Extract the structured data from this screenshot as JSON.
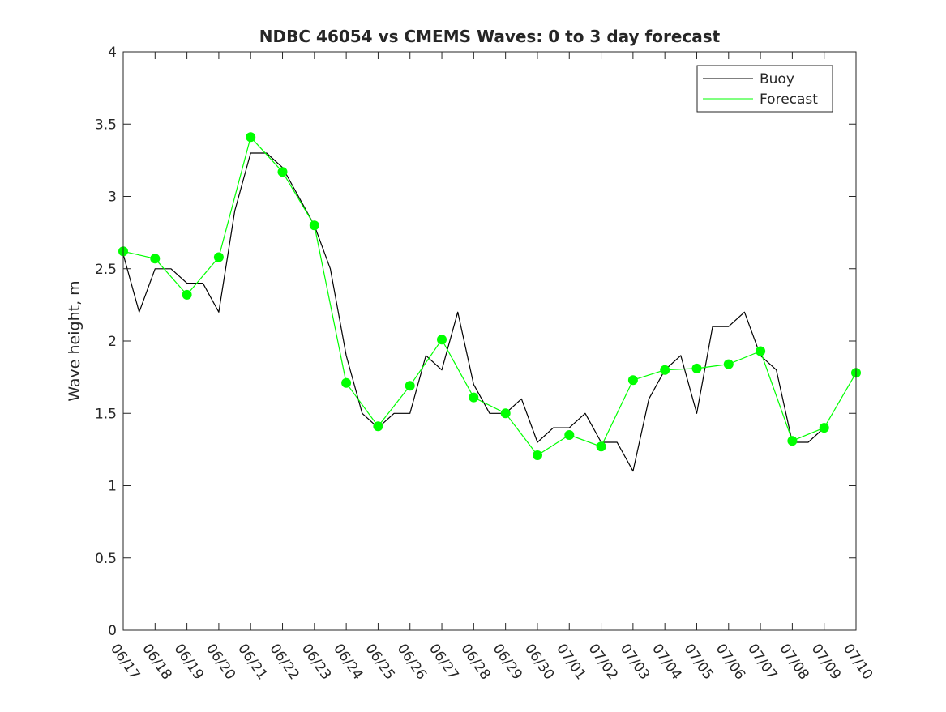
{
  "chart_data": {
    "type": "line",
    "title": "NDBC 46054 vs CMEMS Waves: 0 to 3 day forecast",
    "xlabel": "",
    "ylabel": "Wave height, m",
    "ylim": [
      0,
      4
    ],
    "x_range": [
      "06/17",
      "07/10"
    ],
    "x_ticks": [
      "06/17",
      "06/18",
      "06/19",
      "06/20",
      "06/21",
      "06/22",
      "06/23",
      "06/24",
      "06/25",
      "06/26",
      "06/27",
      "06/28",
      "06/29",
      "06/30",
      "07/01",
      "07/02",
      "07/03",
      "07/04",
      "07/05",
      "07/06",
      "07/07",
      "07/08",
      "07/09",
      "07/10"
    ],
    "y_ticks": [
      "0",
      "0.5",
      "1",
      "1.5",
      "2",
      "2.5",
      "3",
      "3.5",
      "4"
    ],
    "grid": false,
    "legend_position": "top-right",
    "legend": [
      {
        "label": "Buoy",
        "color": "#000000"
      },
      {
        "label": "Forecast",
        "color": "#00ff00"
      }
    ],
    "series": [
      {
        "name": "Buoy",
        "color": "#000000",
        "x": [
          "06/17",
          "06/17 12:00",
          "06/18",
          "06/18 12:00",
          "06/19",
          "06/19 12:00",
          "06/20",
          "06/20 12:00",
          "06/21",
          "06/21 12:00",
          "06/22",
          "06/22 12:00",
          "06/23",
          "06/23 12:00",
          "06/24",
          "06/24 12:00",
          "06/25",
          "06/25 12:00",
          "06/26",
          "06/26 12:00",
          "06/27",
          "06/27 12:00",
          "06/28",
          "06/28 12:00",
          "06/29",
          "06/29 12:00",
          "06/30",
          "06/30 12:00",
          "07/01",
          "07/01 12:00",
          "07/02",
          "07/02 12:00",
          "07/03",
          "07/03 12:00",
          "07/04",
          "07/04 12:00",
          "07/05",
          "07/05 12:00",
          "07/06",
          "07/06 12:00",
          "07/07",
          "07/07 12:00",
          "07/08",
          "07/08 12:00",
          "07/09"
        ],
        "values": [
          2.6,
          2.2,
          2.5,
          2.5,
          2.4,
          2.4,
          2.2,
          2.9,
          3.3,
          3.3,
          3.2,
          3.0,
          2.8,
          2.5,
          1.9,
          1.5,
          1.4,
          1.5,
          1.5,
          1.9,
          1.8,
          2.2,
          1.7,
          1.5,
          1.5,
          1.6,
          1.3,
          1.4,
          1.4,
          1.5,
          1.3,
          1.3,
          1.1,
          1.6,
          1.8,
          1.9,
          1.5,
          2.1,
          2.1,
          2.2,
          1.9,
          1.8,
          1.3,
          1.3,
          1.4
        ]
      },
      {
        "name": "Forecast",
        "color": "#00ff00",
        "x": [
          "06/17",
          "06/18",
          "06/19",
          "06/20",
          "06/21",
          "06/22",
          "06/23",
          "06/24",
          "06/25",
          "06/26",
          "06/27",
          "06/28",
          "06/29",
          "06/30",
          "07/01",
          "07/02",
          "07/03",
          "07/04",
          "07/05",
          "07/06",
          "07/07",
          "07/08",
          "07/09",
          "07/10"
        ],
        "values": [
          2.62,
          2.57,
          2.32,
          2.58,
          3.41,
          3.17,
          2.8,
          1.71,
          1.41,
          1.69,
          2.01,
          1.61,
          1.5,
          1.21,
          1.35,
          1.27,
          1.73,
          1.8,
          1.81,
          1.84,
          1.93,
          1.31,
          1.4,
          1.78
        ],
        "markers": true
      }
    ]
  }
}
